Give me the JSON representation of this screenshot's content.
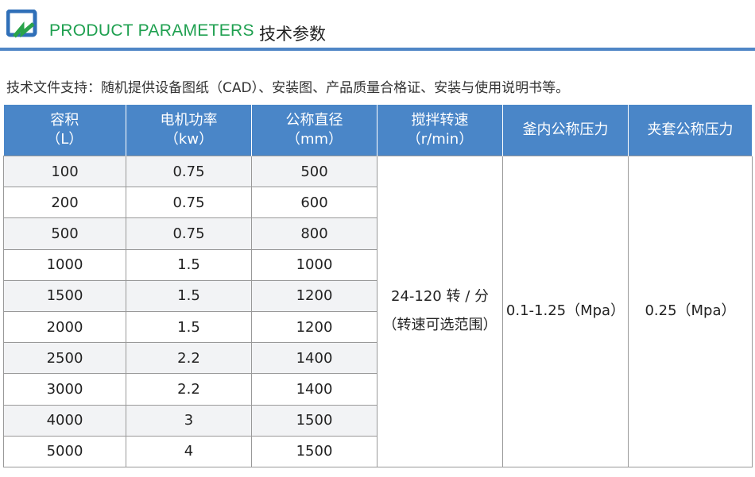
{
  "header": {
    "title": "PRODUCT PARAMETERS",
    "title_cn": "技术参数",
    "brand_color": "#1fa050",
    "rule_color": "#4f86c6"
  },
  "note": "技术文件支持：随机提供设备图纸（CAD）、安装图、产品质量合格证、安装与使用说明书等。",
  "table": {
    "header_color": "#4a86c8",
    "columns": [
      {
        "label": "容积",
        "unit": "（L）"
      },
      {
        "label": "电机功率",
        "unit": "（kw）"
      },
      {
        "label": "公称直径",
        "unit": "（mm）"
      },
      {
        "label": "搅拌转速",
        "unit": "（r/min）"
      },
      {
        "label": "釜内公称压力",
        "unit": ""
      },
      {
        "label": "夹套公称压力",
        "unit": ""
      }
    ],
    "rows": [
      [
        "100",
        "0.75",
        "500"
      ],
      [
        "200",
        "0.75",
        "600"
      ],
      [
        "500",
        "0.75",
        "800"
      ],
      [
        "1000",
        "1.5",
        "1000"
      ],
      [
        "1500",
        "1.5",
        "1200"
      ],
      [
        "2000",
        "1.5",
        "1200"
      ],
      [
        "2500",
        "2.2",
        "1400"
      ],
      [
        "3000",
        "2.2",
        "1400"
      ],
      [
        "4000",
        "3",
        "1500"
      ],
      [
        "5000",
        "4",
        "1500"
      ]
    ],
    "speed": "24-120 转 / 分",
    "speed_note": "（转速可选范围）",
    "inner_pressure": "0.1-1.25（Mpa）",
    "jacket_pressure": "0.25（Mpa）"
  }
}
